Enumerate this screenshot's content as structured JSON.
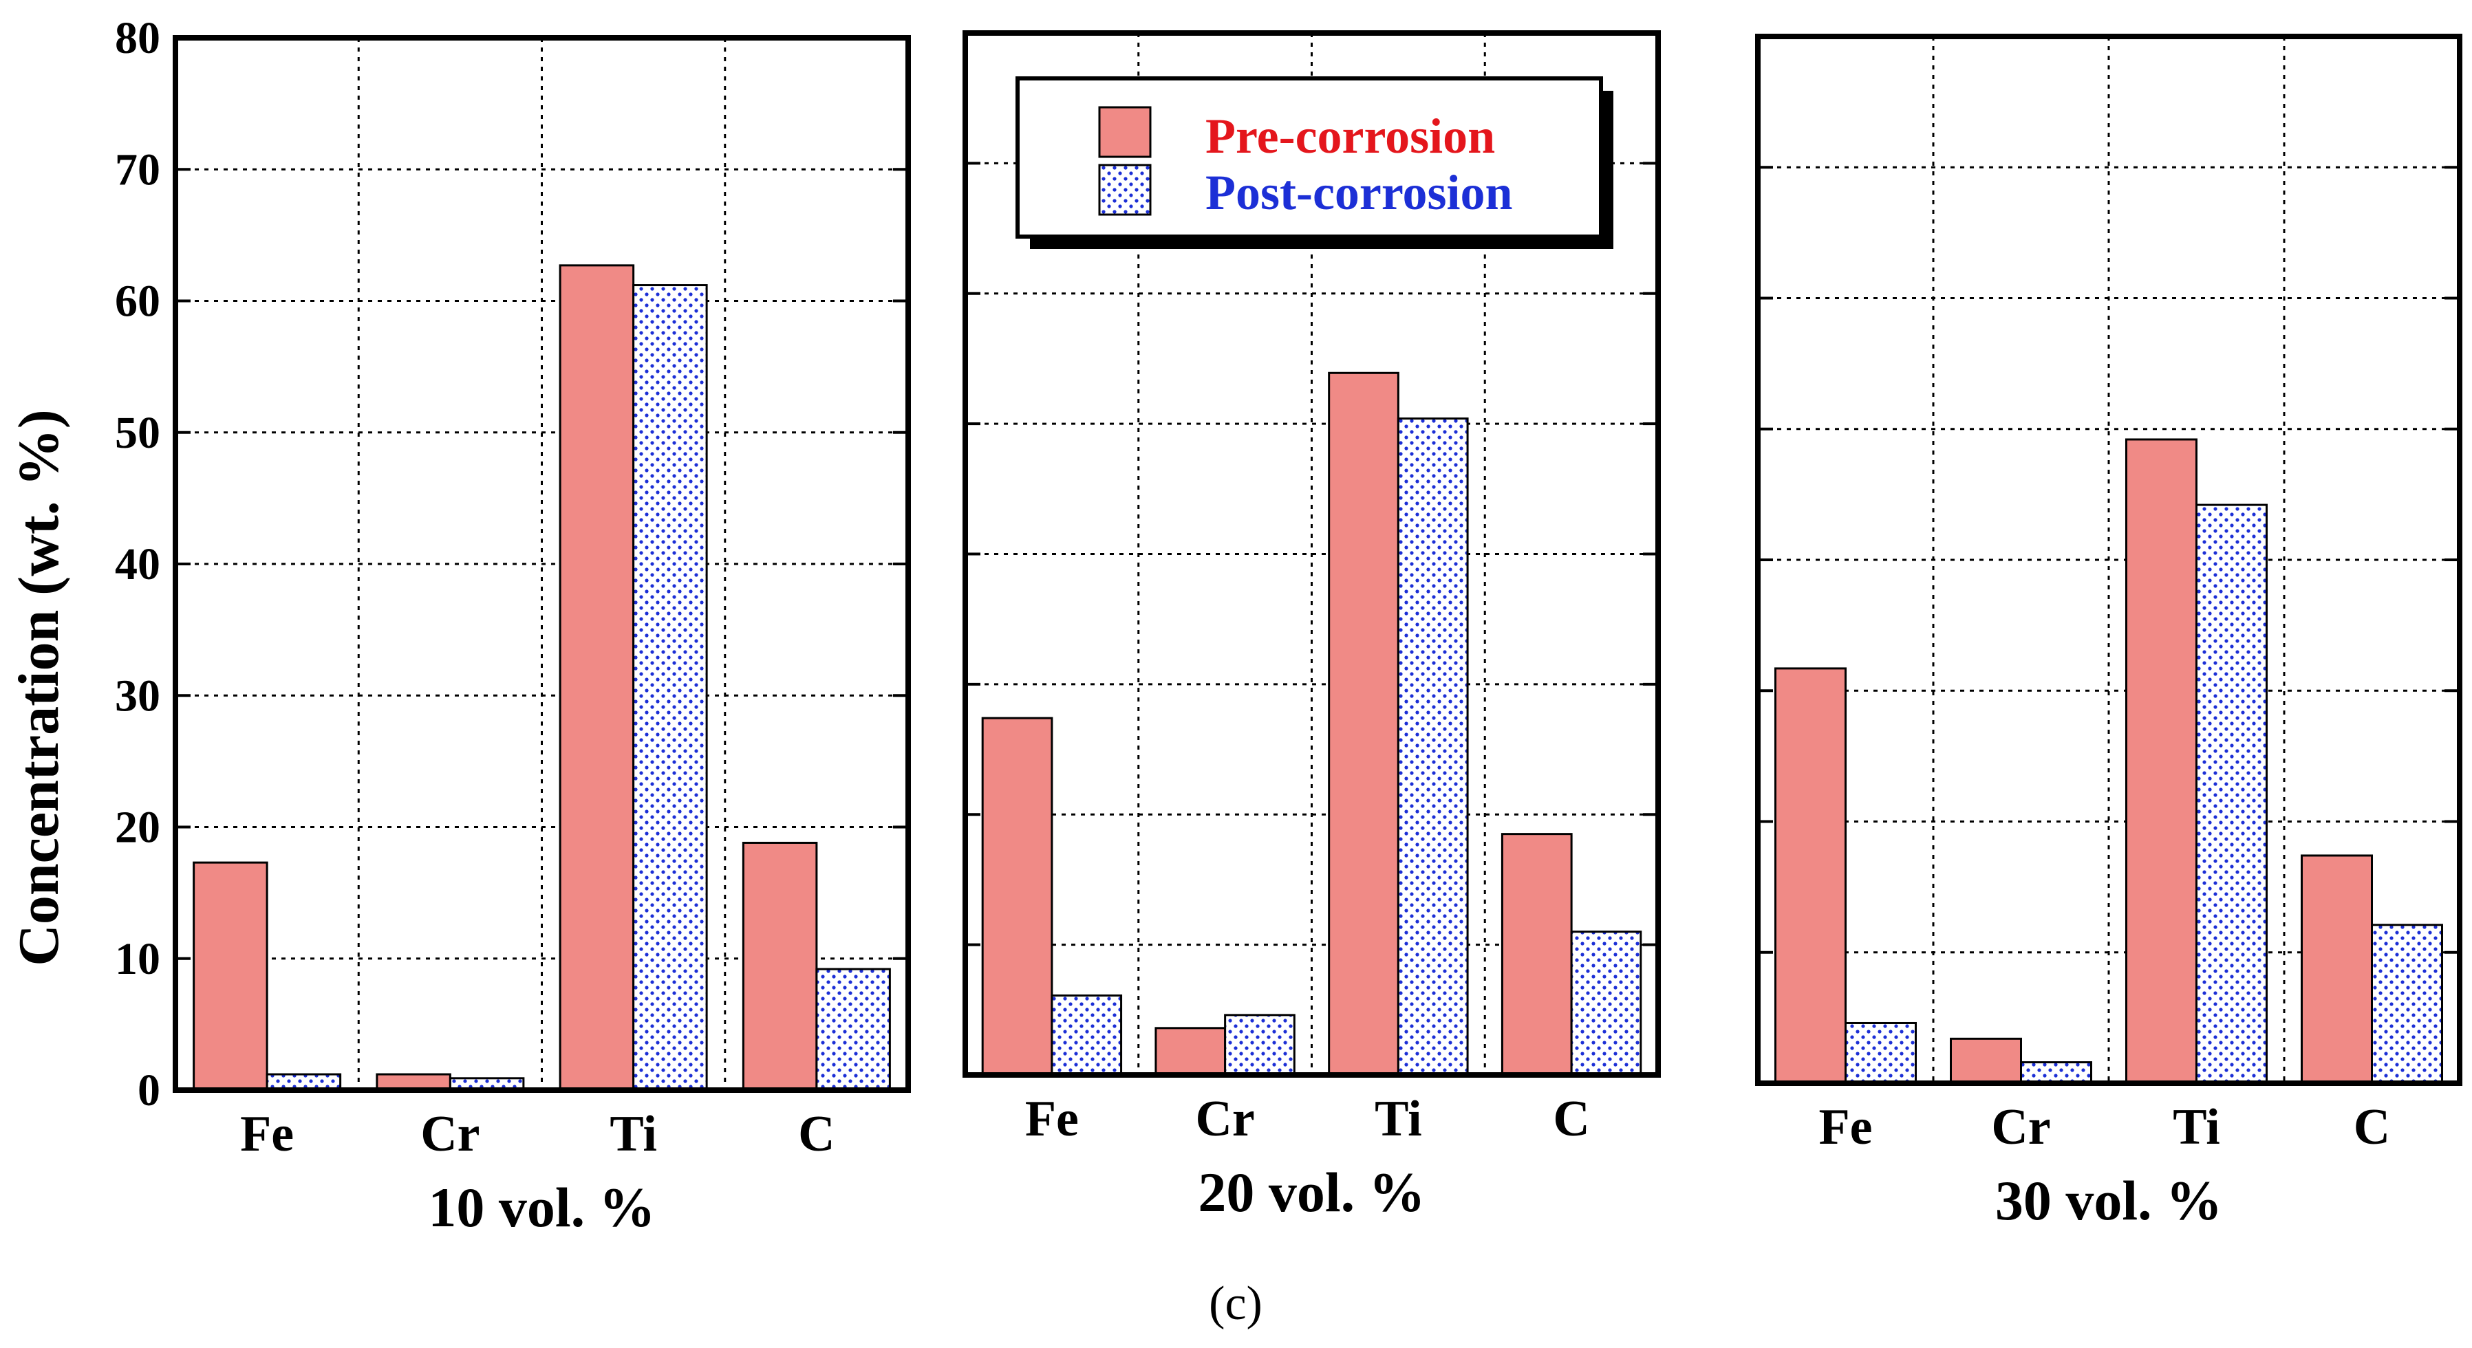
{
  "chart_data": [
    {
      "type": "bar",
      "panel": "10 vol. %",
      "categories": [
        "Fe",
        "Cr",
        "Ti",
        "C"
      ],
      "series": [
        {
          "name": "Pre-corrosion",
          "values": [
            17.3,
            1.2,
            62.7,
            18.8
          ]
        },
        {
          "name": "Post-corrosion",
          "values": [
            1.2,
            0.9,
            61.2,
            9.2
          ]
        }
      ],
      "xlabel": "10 vol. %",
      "ylabel": "Concentration (wt. %)",
      "ylim": [
        0,
        80
      ],
      "yticks": [
        "0",
        "10",
        "20",
        "30",
        "40",
        "50",
        "60",
        "70",
        "80"
      ],
      "grid": true
    },
    {
      "type": "bar",
      "panel": "20 vol. %",
      "categories": [
        "Fe",
        "Cr",
        "Ti",
        "C"
      ],
      "series": [
        {
          "name": "Pre-corrosion",
          "values": [
            27.4,
            3.6,
            53.9,
            18.5
          ]
        },
        {
          "name": "Post-corrosion",
          "values": [
            6.1,
            4.6,
            50.4,
            11.0
          ]
        }
      ],
      "xlabel": "20 vol. %",
      "ylim": [
        0,
        80
      ],
      "grid": true
    },
    {
      "type": "bar",
      "panel": "30 vol. %",
      "categories": [
        "Fe",
        "Cr",
        "Ti",
        "C"
      ],
      "series": [
        {
          "name": "Pre-corrosion",
          "values": [
            31.7,
            3.4,
            49.2,
            17.4
          ]
        },
        {
          "name": "Post-corrosion",
          "values": [
            4.6,
            1.6,
            44.2,
            12.1
          ]
        }
      ],
      "xlabel": "30 vol. %",
      "ylim": [
        0,
        80
      ],
      "grid": true
    }
  ],
  "legend": {
    "pre_label": "Pre-corrosion",
    "post_label": "Post-corrosion",
    "placement": "top-center"
  },
  "caption": "(c)",
  "colors": {
    "pre_fill": "#f08a86",
    "post_dot": "#1c2fd6",
    "pre_text": "#e4161c",
    "post_text": "#1c2fd6"
  }
}
